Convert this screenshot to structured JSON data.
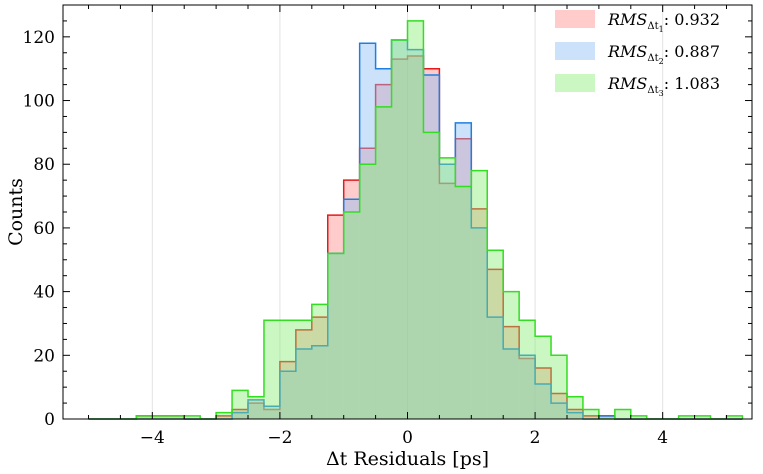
{
  "chart_data": {
    "type": "histogram",
    "xlabel": "Δt Residuals [ps]",
    "ylabel": "Counts",
    "xlim": [
      -5.4,
      5.4
    ],
    "ylim": [
      0,
      130
    ],
    "x_ticks": [
      -4,
      -2,
      0,
      2,
      4
    ],
    "x_tick_labels": [
      "−4",
      "−2",
      "0",
      "2",
      "4"
    ],
    "y_ticks": [
      0,
      20,
      40,
      60,
      80,
      100,
      120
    ],
    "y_tick_labels": [
      "0",
      "20",
      "40",
      "60",
      "80",
      "100",
      "120"
    ],
    "grid": "vertical",
    "legend_position": "top-right",
    "bin_edges": [
      -5.0,
      -4.75,
      -4.5,
      -4.25,
      -4.0,
      -3.75,
      -3.5,
      -3.25,
      -3.0,
      -2.75,
      -2.5,
      -2.25,
      -2.0,
      -1.75,
      -1.5,
      -1.25,
      -1.0,
      -0.75,
      -0.5,
      -0.25,
      0.0,
      0.25,
      0.5,
      0.75,
      1.0,
      1.25,
      1.5,
      1.75,
      2.0,
      2.25,
      2.5,
      2.75,
      3.0,
      3.25,
      3.5,
      3.75,
      4.0,
      4.25,
      4.5,
      4.75,
      5.0,
      5.25
    ],
    "series": [
      {
        "name": "Δt1",
        "legend_main": "RMS",
        "legend_sub": "Δt",
        "legend_subsub": "1",
        "legend_value": ": 0.932",
        "stroke": "#e41a1c",
        "fill": "rgba(255,130,130,0.42)",
        "values": [
          0,
          0,
          0,
          1,
          1,
          1,
          0,
          0,
          1,
          3,
          5,
          3,
          18,
          28,
          32,
          64,
          75,
          85,
          105,
          113,
          114,
          110,
          74,
          88,
          66,
          47,
          29,
          19,
          16,
          8,
          3,
          1,
          1,
          0,
          0,
          0,
          0,
          0,
          0,
          0,
          0
        ]
      },
      {
        "name": "Δt2",
        "legend_main": "RMS",
        "legend_sub": "Δt",
        "legend_subsub": "2",
        "legend_value": ": 0.887",
        "stroke": "#1f7fe0",
        "fill": "rgba(140,190,245,0.45)",
        "values": [
          0,
          0,
          0,
          0,
          0,
          0,
          0,
          0,
          0,
          2,
          6,
          4,
          15,
          22,
          23,
          52,
          69,
          118,
          110,
          119,
          116,
          108,
          80,
          93,
          60,
          32,
          22,
          20,
          11,
          5,
          2,
          0,
          1,
          0,
          0,
          0,
          0,
          0,
          0,
          0,
          0
        ]
      },
      {
        "name": "Δt3",
        "legend_main": "RMS",
        "legend_sub": "Δt",
        "legend_subsub": "3",
        "legend_value": ": 1.083",
        "stroke": "#33dd22",
        "fill": "rgba(130,235,110,0.42)",
        "values": [
          0,
          0,
          0,
          1,
          1,
          1,
          1,
          0,
          2,
          9,
          7,
          31,
          31,
          31,
          36,
          52,
          65,
          80,
          98,
          119,
          125,
          90,
          82,
          73,
          78,
          53,
          40,
          31,
          26,
          20,
          7,
          3,
          0,
          3,
          1,
          0,
          0,
          1,
          1,
          0,
          1
        ]
      }
    ]
  }
}
